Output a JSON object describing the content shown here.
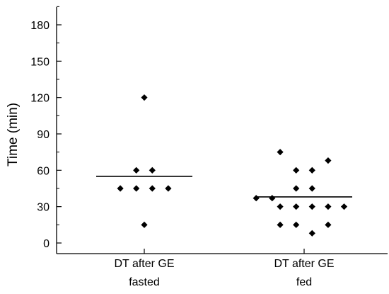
{
  "chart_data": {
    "type": "scatter",
    "title": "",
    "xlabel": "",
    "ylabel": "Time (min)",
    "ylim": [
      0,
      195
    ],
    "yticks": [
      0,
      30,
      60,
      90,
      120,
      150,
      180
    ],
    "grid": false,
    "groups": [
      {
        "label_line1": "DT after GE",
        "label_line2": "fasted",
        "points": [
          {
            "x_jitter": 0,
            "y": 120
          },
          {
            "x_jitter": -1,
            "y": 60
          },
          {
            "x_jitter": 1,
            "y": 60
          },
          {
            "x_jitter": -3,
            "y": 45
          },
          {
            "x_jitter": -1,
            "y": 45
          },
          {
            "x_jitter": 1,
            "y": 45
          },
          {
            "x_jitter": 3,
            "y": 45
          },
          {
            "x_jitter": 0,
            "y": 15
          }
        ],
        "mean": 55
      },
      {
        "label_line1": "DT after GE",
        "label_line2": "fed",
        "points": [
          {
            "x_jitter": -3,
            "y": 75
          },
          {
            "x_jitter": 3,
            "y": 68
          },
          {
            "x_jitter": -1,
            "y": 60
          },
          {
            "x_jitter": 1,
            "y": 60
          },
          {
            "x_jitter": -1,
            "y": 45
          },
          {
            "x_jitter": 1,
            "y": 45
          },
          {
            "x_jitter": -6,
            "y": 37
          },
          {
            "x_jitter": -4,
            "y": 37
          },
          {
            "x_jitter": -3,
            "y": 30
          },
          {
            "x_jitter": -1,
            "y": 30
          },
          {
            "x_jitter": 1,
            "y": 30
          },
          {
            "x_jitter": 3,
            "y": 30
          },
          {
            "x_jitter": 5,
            "y": 30
          },
          {
            "x_jitter": -3,
            "y": 15
          },
          {
            "x_jitter": -1,
            "y": 15
          },
          {
            "x_jitter": 3,
            "y": 15
          },
          {
            "x_jitter": 1,
            "y": 8
          }
        ],
        "mean": 38
      }
    ]
  }
}
